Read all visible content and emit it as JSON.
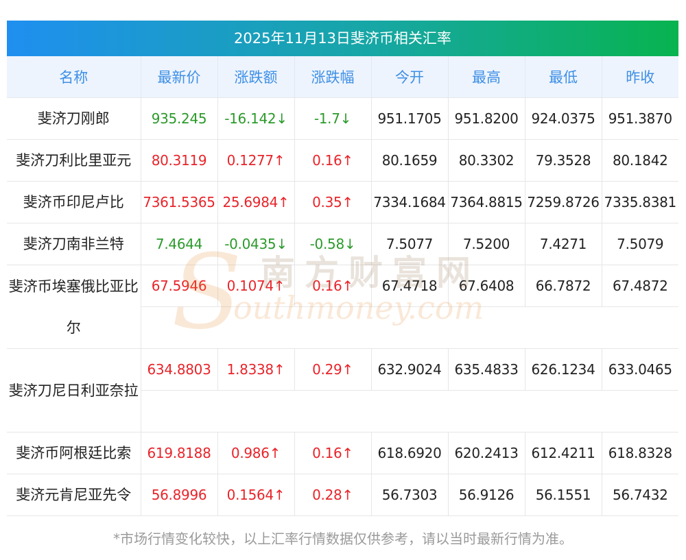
{
  "title": "2025年11月13日斐济币相关汇率",
  "headers": [
    "名称",
    "最新价",
    "涨跌额",
    "涨跌幅",
    "今开",
    "最高",
    "最低",
    "昨收"
  ],
  "rows": [
    {
      "name": "斐济刀刚郎",
      "price": "935.245",
      "change": "-16.142↓",
      "pct": "-1.7↓",
      "open": "951.1705",
      "high": "951.8200",
      "low": "924.0375",
      "prev": "951.3870",
      "dir": "down"
    },
    {
      "name": "斐济刀利比里亚元",
      "price": "80.3119",
      "change": "0.1277↑",
      "pct": "0.16↑",
      "open": "80.1659",
      "high": "80.3302",
      "low": "79.3528",
      "prev": "80.1842",
      "dir": "up"
    },
    {
      "name": "斐济币印尼卢比",
      "price": "7361.5365",
      "change": "25.6984↑",
      "pct": "0.35↑",
      "open": "7334.1684",
      "high": "7364.8815",
      "low": "7259.8726",
      "prev": "7335.8381",
      "dir": "up"
    },
    {
      "name": "斐济刀南非兰特",
      "price": "7.4644",
      "change": "-0.0435↓",
      "pct": "-0.58↓",
      "open": "7.5077",
      "high": "7.5200",
      "low": "7.4271",
      "prev": "7.5079",
      "dir": "down"
    },
    {
      "name": "斐济币埃塞俄比亚比尔",
      "price": "67.5946",
      "change": "0.1074↑",
      "pct": "0.16↑",
      "open": "67.4718",
      "high": "67.6408",
      "low": "66.7872",
      "prev": "67.4872",
      "dir": "up"
    },
    {
      "name": "斐济刀尼日利亚奈拉",
      "price": "634.8803",
      "change": "1.8338↑",
      "pct": "0.29↑",
      "open": "632.9024",
      "high": "635.4833",
      "low": "626.1234",
      "prev": "633.0465",
      "dir": "up"
    },
    {
      "name": "斐济币阿根廷比索",
      "price": "619.8188",
      "change": "0.986↑",
      "pct": "0.16↑",
      "open": "618.6920",
      "high": "620.2413",
      "low": "612.4211",
      "prev": "618.8328",
      "dir": "up"
    },
    {
      "name": "斐济元肯尼亚先令",
      "price": "56.8996",
      "change": "0.1564↑",
      "pct": "0.28↑",
      "open": "56.7303",
      "high": "56.9126",
      "low": "56.1551",
      "prev": "56.7432",
      "dir": "up"
    }
  ],
  "footnote": "*市场行情变化较快，以上汇率行情数据仅供参考，请以当时最新行情为准。",
  "watermark": {
    "letter": "S",
    "cn": "南方财富网",
    "en": "outhmoney.com"
  },
  "colors": {
    "up": "#e8242a",
    "down": "#2b9a2b",
    "header_text": "#3d8fe6",
    "title_grad_start": "#1f8ff0",
    "title_grad_end": "#08b34f"
  }
}
